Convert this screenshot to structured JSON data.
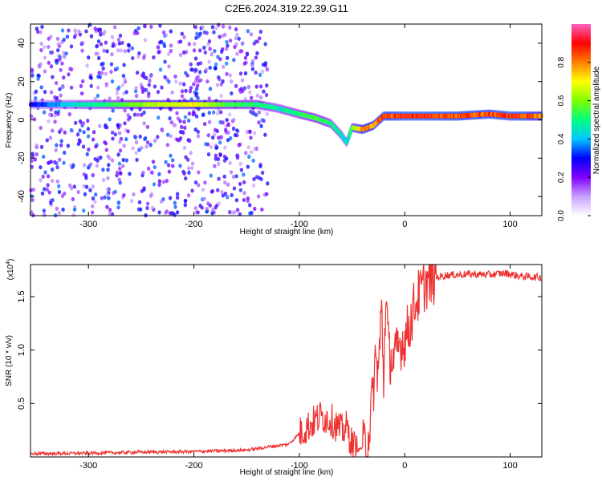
{
  "title": "C2E6.2024.319.22.39.G11",
  "chart_data": [
    {
      "type": "heatmap",
      "xlabel": "Height of straight line (km)",
      "ylabel": "Frequency (Hz)",
      "xlim": [
        -355,
        130
      ],
      "ylim": [
        -50,
        50
      ],
      "xticks": [
        -300,
        -200,
        -100,
        0,
        100
      ],
      "xtick_labels": [
        "-300",
        "-200",
        "-100",
        "0",
        "100"
      ],
      "yticks": [
        -40,
        -20,
        0,
        20,
        40
      ],
      "ytick_labels": [
        "-40",
        "-20",
        "0",
        "20",
        "40"
      ],
      "colorbar": {
        "label": "Normalized spectral amplitude",
        "range": [
          0,
          1
        ],
        "ticks": [
          0.0,
          0.2,
          0.4,
          0.6,
          0.8
        ],
        "tick_labels": [
          "0.0",
          "0.2",
          "0.4",
          "0.6",
          "0.8"
        ],
        "colormap": [
          "#ffffff",
          "#c8a0ff",
          "#8000ff",
          "#0000ff",
          "#00c8ff",
          "#00ff80",
          "#80ff00",
          "#ffff00",
          "#ff8000",
          "#ff0000",
          "#ff60c0"
        ]
      },
      "ridge": {
        "x": [
          -355,
          -320,
          -280,
          -240,
          -200,
          -170,
          -140,
          -120,
          -100,
          -85,
          -70,
          -60,
          -55,
          -50,
          -40,
          -30,
          -20,
          -10,
          0,
          20,
          50,
          80,
          100,
          130
        ],
        "frequency": [
          8,
          8,
          8,
          8,
          8,
          8,
          8,
          6,
          3,
          1,
          -2,
          -8,
          -12,
          -4,
          -5,
          -3,
          2,
          2,
          2,
          2,
          2,
          3,
          2,
          2
        ],
        "amplitude": [
          0.3,
          0.45,
          0.55,
          0.7,
          0.75,
          0.6,
          0.55,
          0.5,
          0.55,
          0.6,
          0.55,
          0.5,
          0.45,
          0.6,
          0.85,
          0.85,
          0.9,
          0.9,
          0.95,
          0.95,
          0.9,
          0.9,
          0.95,
          0.85
        ]
      },
      "noise_region_x": [
        -355,
        -130
      ],
      "noise_level": 0.3
    },
    {
      "type": "line",
      "xlabel": "Height of straight line (km)",
      "ylabel": "SNR (10 * v/v)",
      "y_exponent_label": "(x10",
      "y_exponent_value": "4",
      "y_exponent_close": ")",
      "xlim": [
        -355,
        130
      ],
      "ylim": [
        0,
        18000
      ],
      "xticks": [
        -300,
        -200,
        -100,
        0,
        100
      ],
      "xtick_labels": [
        "-300",
        "-200",
        "-100",
        "0",
        "100"
      ],
      "yticks": [
        5000,
        10000,
        15000
      ],
      "ytick_labels": [
        "0.5",
        "1.0",
        "1.5"
      ],
      "color": "#ee3333",
      "series": [
        {
          "x": [
            -355,
            -300,
            -250,
            -200,
            -150,
            -110,
            -100,
            -90,
            -80,
            -70,
            -60,
            -55,
            -50,
            -45,
            -40,
            -35,
            -30,
            -28,
            -25,
            -22,
            -20,
            -18,
            -15,
            -10,
            -5,
            0,
            5,
            10,
            20,
            30,
            40,
            60,
            80,
            95,
            110,
            130
          ],
          "y": [
            300,
            350,
            450,
            500,
            650,
            1200,
            2200,
            3000,
            3800,
            3500,
            2400,
            2800,
            1200,
            600,
            900,
            1500,
            6000,
            9000,
            8000,
            14000,
            7000,
            15500,
            9500,
            9000,
            10500,
            11000,
            12500,
            14500,
            16300,
            16800,
            17000,
            17100,
            17050,
            17200,
            16900,
            16800
          ]
        }
      ]
    }
  ]
}
